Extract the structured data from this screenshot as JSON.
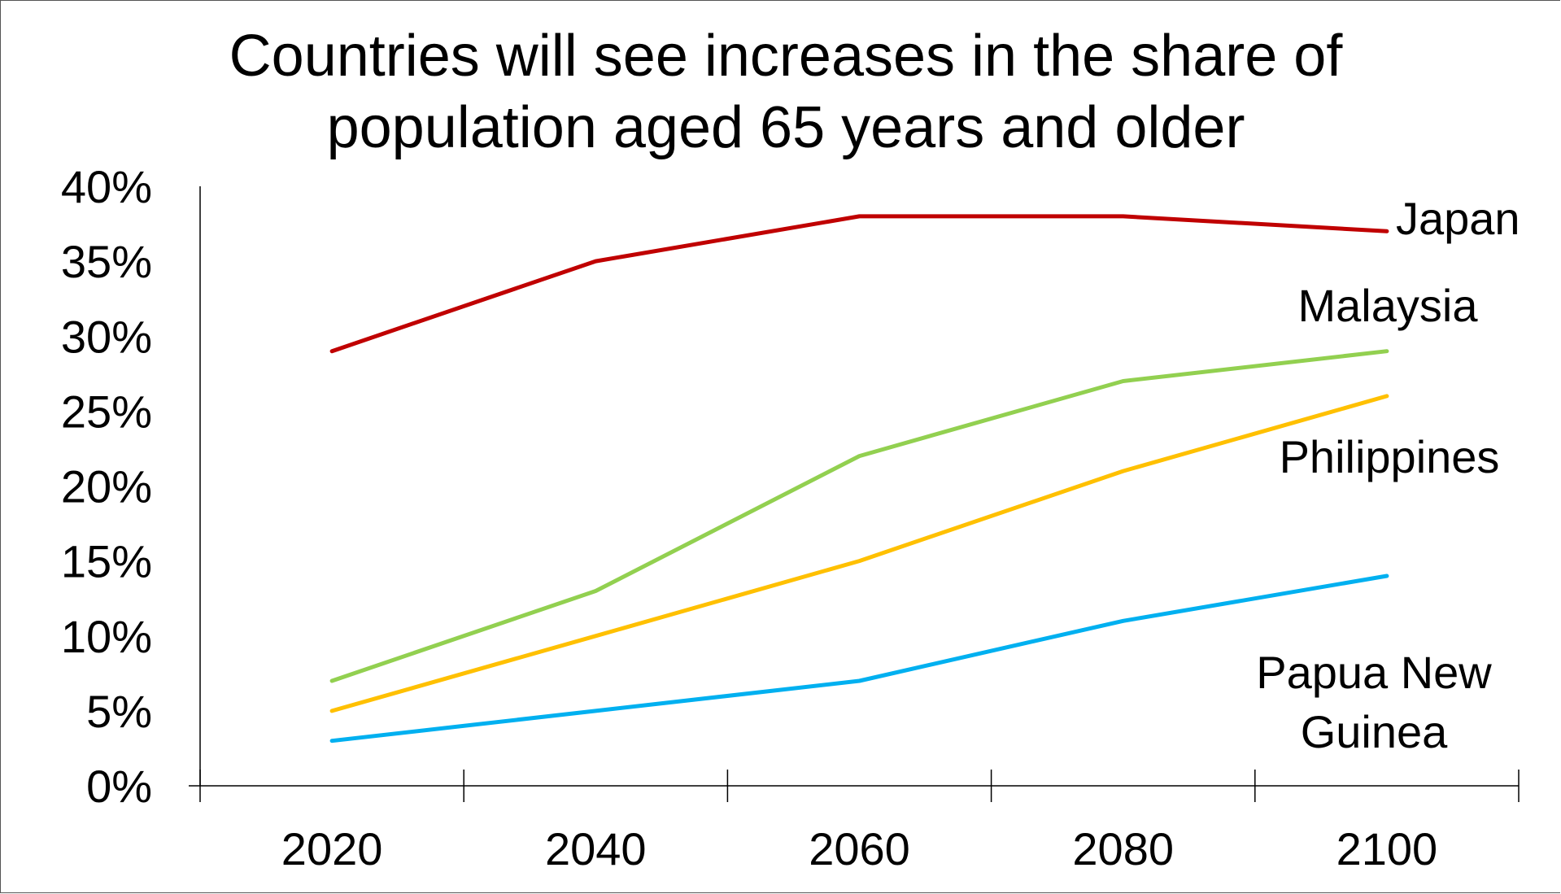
{
  "chart_data": {
    "type": "line",
    "title": "Countries will see increases in the share of population aged 65 years and older",
    "title_lines": [
      "Countries will see increases in the share of",
      "population aged 65 years and older"
    ],
    "x": [
      2020,
      2040,
      2060,
      2080,
      2100
    ],
    "x_tick_labels": [
      "2020",
      "2040",
      "2060",
      "2080",
      "2100"
    ],
    "y_tick_labels": [
      "0%",
      "5%",
      "10%",
      "15%",
      "20%",
      "25%",
      "30%",
      "35%",
      "40%"
    ],
    "ylim": [
      0,
      40
    ],
    "xlabel": "",
    "ylabel": "",
    "grid": false,
    "legend": "none (series labeled directly at line ends)",
    "series": [
      {
        "name": "Japan",
        "label_lines": [
          "Japan"
        ],
        "color": "#c00000",
        "values": [
          29,
          35,
          38,
          38,
          37
        ]
      },
      {
        "name": "Malaysia",
        "label_lines": [
          "Malaysia"
        ],
        "color": "#92d050",
        "values": [
          7,
          13,
          22,
          27,
          29
        ]
      },
      {
        "name": "Philippines",
        "label_lines": [
          "Philippines"
        ],
        "color": "#ffc000",
        "values": [
          5,
          10,
          15,
          21,
          26
        ]
      },
      {
        "name": "Papua New Guinea",
        "label_lines": [
          "Papua New",
          "Guinea"
        ],
        "color": "#00b0f0",
        "values": [
          3,
          5,
          7,
          11,
          14
        ]
      }
    ]
  }
}
